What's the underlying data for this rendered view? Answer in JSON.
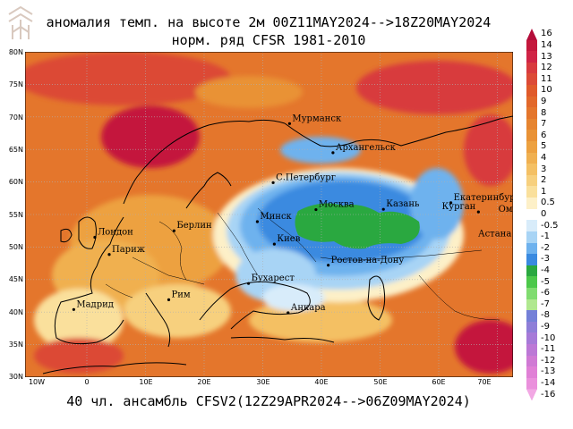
{
  "title_line1": "аномалия темп. на высоте 2м 00Z11MAY2024-->18Z20MAY2024",
  "title_line2": "норм. ряд CFSR 1981-2010",
  "footer": "40 чл. ансамбль CFSV2(12Z29APR2024-->06Z09MAY2024)",
  "lat_labels": [
    "80N",
    "75N",
    "70N",
    "65N",
    "60N",
    "55N",
    "50N",
    "45N",
    "40N",
    "35N",
    "30N"
  ],
  "lon_labels": [
    "10W",
    "0",
    "10E",
    "20E",
    "30E",
    "40E",
    "50E",
    "60E",
    "70E"
  ],
  "cities": [
    {
      "name": "Мурманск",
      "lon": 33.1,
      "lat": 68.97
    },
    {
      "name": "Архангельск",
      "lon": 40.5,
      "lat": 64.5
    },
    {
      "name": "С.Петербург",
      "lon": 30.3,
      "lat": 59.9
    },
    {
      "name": "Москва",
      "lon": 37.6,
      "lat": 55.75
    },
    {
      "name": "Казань",
      "lon": 49.1,
      "lat": 55.8
    },
    {
      "name": "Екатеринбург",
      "lon": 60.6,
      "lat": 56.8
    },
    {
      "name": "Курган",
      "lon": 65.3,
      "lat": 55.4
    },
    {
      "name": "Омск",
      "lon": 73.4,
      "lat": 55.0
    },
    {
      "name": "Астана",
      "lon": 71.4,
      "lat": 51.2
    },
    {
      "name": "Минск",
      "lon": 27.6,
      "lat": 53.9
    },
    {
      "name": "Киев",
      "lon": 30.5,
      "lat": 50.45
    },
    {
      "name": "Берлин",
      "lon": 13.4,
      "lat": 52.5
    },
    {
      "name": "Лондон",
      "lon": -0.1,
      "lat": 51.5
    },
    {
      "name": "Париж",
      "lon": 2.35,
      "lat": 48.85
    },
    {
      "name": "Рим",
      "lon": 12.5,
      "lat": 41.9
    },
    {
      "name": "Мадрид",
      "lon": -3.7,
      "lat": 40.4
    },
    {
      "name": "Бухарест",
      "lon": 26.1,
      "lat": 44.4
    },
    {
      "name": "Ростов-на-Дону",
      "lon": 39.7,
      "lat": 47.2
    },
    {
      "name": "Анкара",
      "lon": 32.85,
      "lat": 39.9
    }
  ],
  "colorbar": [
    {
      "label": "16",
      "color": "#b40d3a"
    },
    {
      "label": "14",
      "color": "#c4183c"
    },
    {
      "label": "13",
      "color": "#d02445"
    },
    {
      "label": "12",
      "color": "#d83a3e"
    },
    {
      "label": "11",
      "color": "#dc4a36"
    },
    {
      "label": "10",
      "color": "#e05a2a"
    },
    {
      "label": "9",
      "color": "#e2682a"
    },
    {
      "label": "8",
      "color": "#e4762c"
    },
    {
      "label": "7",
      "color": "#e68430"
    },
    {
      "label": "6",
      "color": "#e99236"
    },
    {
      "label": "5",
      "color": "#eda140"
    },
    {
      "label": "4",
      "color": "#f0b050"
    },
    {
      "label": "3",
      "color": "#f4c064"
    },
    {
      "label": "2",
      "color": "#f7d07e"
    },
    {
      "label": "1",
      "color": "#fae09c"
    },
    {
      "label": "0.5",
      "color": "#fdf0c8"
    },
    {
      "label": "0",
      "color": "#ffffff"
    },
    {
      "label": "-0.5",
      "color": "#d8ecfa"
    },
    {
      "label": "-1",
      "color": "#a8d4f5"
    },
    {
      "label": "-2",
      "color": "#6eb2ee"
    },
    {
      "label": "-3",
      "color": "#3a8ae0"
    },
    {
      "label": "-4",
      "color": "#2aa840"
    },
    {
      "label": "-5",
      "color": "#4cc84a"
    },
    {
      "label": "-6",
      "color": "#80dc70"
    },
    {
      "label": "-7",
      "color": "#b0e890"
    },
    {
      "label": "-8",
      "color": "#7480d8"
    },
    {
      "label": "-9",
      "color": "#8e7ed8"
    },
    {
      "label": "-10",
      "color": "#a67ad8"
    },
    {
      "label": "-11",
      "color": "#bc78d6"
    },
    {
      "label": "-12",
      "color": "#d07ad4"
    },
    {
      "label": "-13",
      "color": "#e080d6"
    },
    {
      "label": "-14",
      "color": "#ea90dc"
    },
    {
      "label": "-16",
      "color": "#f2a8e4"
    }
  ]
}
